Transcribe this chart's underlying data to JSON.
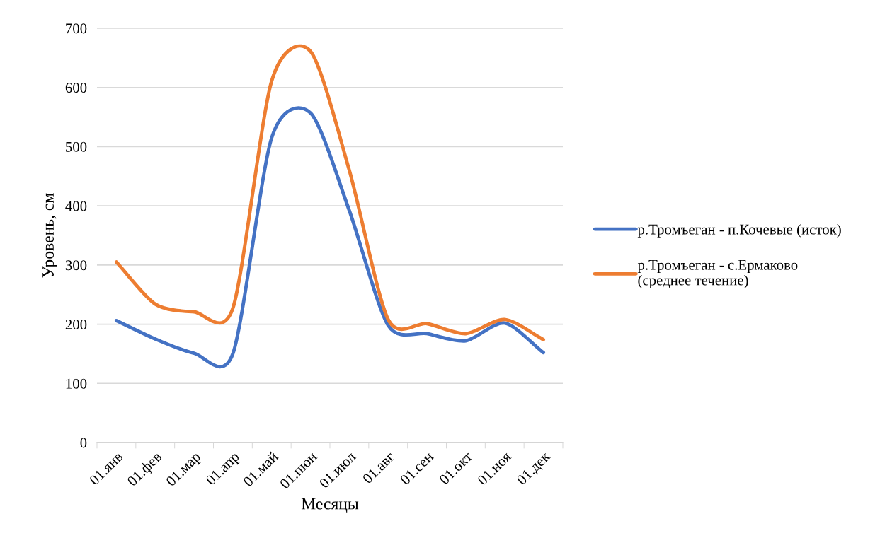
{
  "chart_data": {
    "type": "line",
    "xlabel": "Месяцы",
    "ylabel": "Уровень, см",
    "categories": [
      "01.янв",
      "01.фев",
      "01.мар",
      "01.апр",
      "01.май",
      "01.июн",
      "01.июл",
      "01.авг",
      "01.сен",
      "01.окт",
      "01.ноя",
      "01.дек"
    ],
    "series": [
      {
        "name": "р.Тромъеган - п.Кочевые (исток)",
        "color": "#4472c4",
        "values": [
          206,
          175,
          151,
          150,
          515,
          557,
          392,
          198,
          184,
          172,
          202,
          152
        ]
      },
      {
        "name": "р.Тромъеган - с.Ермаково\n(среднее течение)",
        "color": "#ed7d31",
        "values": [
          305,
          234,
          221,
          227,
          611,
          661,
          460,
          208,
          201,
          184,
          208,
          174
        ]
      }
    ],
    "ylim": [
      0,
      700
    ],
    "yticks": [
      0,
      100,
      200,
      300,
      400,
      500,
      600,
      700
    ],
    "grid": "y",
    "legend": "right",
    "marker": "none",
    "line_style": "solid"
  }
}
